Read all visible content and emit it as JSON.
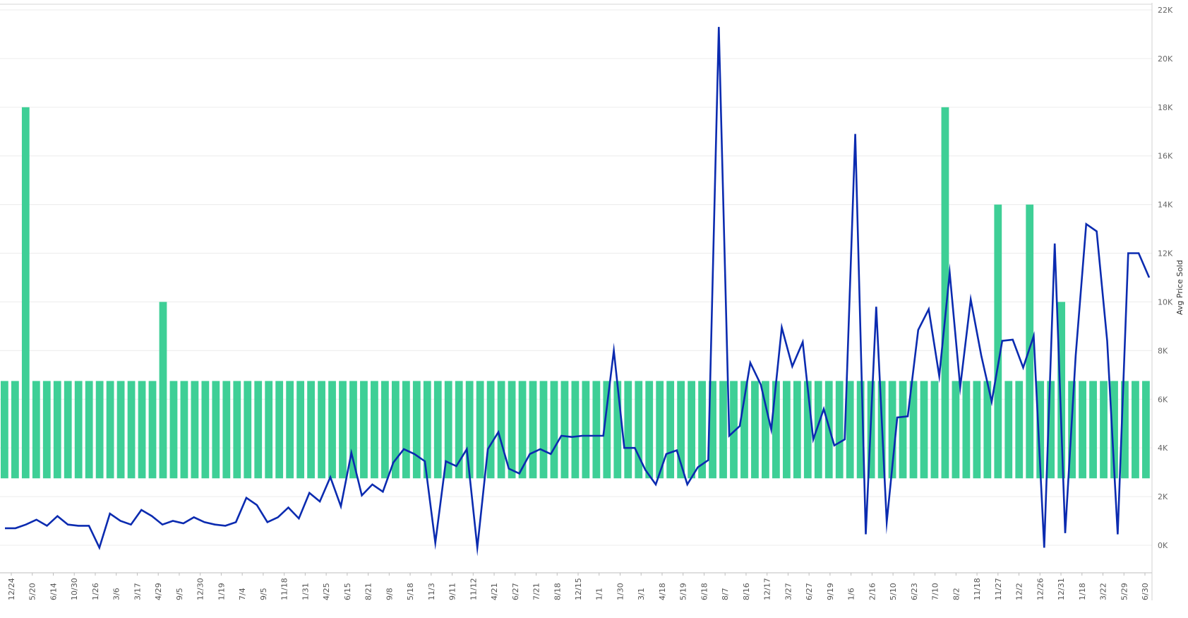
{
  "chart_data": {
    "type": "bar",
    "ylabel": "Avg Price Sold",
    "ylim": [
      -1100,
      22000
    ],
    "yticks": [
      0,
      2000,
      4000,
      6000,
      8000,
      10000,
      12000,
      14000,
      16000,
      18000,
      20000,
      22000
    ],
    "ytick_labels": [
      "0K",
      "2K",
      "4K",
      "6K",
      "8K",
      "10K",
      "12K",
      "14K",
      "16K",
      "18K",
      "20K",
      "22K"
    ],
    "grid": "horizontal",
    "bar_series": {
      "color": "#3ecf96",
      "bar_bottom": 2750,
      "default_top": 6750,
      "bar_count": 109,
      "bar_tops": {
        "2": 18000,
        "15": 10000,
        "89": 18000,
        "94": 14000,
        "97": 14000,
        "100": 10000
      }
    },
    "line_series": {
      "color": "#0b2bb0",
      "values": [
        700,
        700,
        850,
        1050,
        800,
        1200,
        850,
        800,
        800,
        -100,
        1300,
        1000,
        850,
        1450,
        1200,
        850,
        1000,
        900,
        1150,
        950,
        850,
        800,
        950,
        1950,
        1650,
        950,
        1150,
        1550,
        1100,
        2150,
        1800,
        2800,
        1600,
        3800,
        2050,
        2500,
        2200,
        3400,
        3950,
        3750,
        3450,
        100,
        3450,
        3250,
        3950,
        -100,
        3950,
        4650,
        3150,
        2950,
        3750,
        3950,
        3750,
        4500,
        4450,
        4500,
        4500,
        4500,
        8000,
        4000,
        4000,
        3100,
        2500,
        3750,
        3900,
        2500,
        3200,
        3500,
        21300,
        4500,
        4900,
        7500,
        6600,
        4750,
        8950,
        7350,
        8350,
        4350,
        5600,
        4100,
        4350,
        16900,
        450,
        9800,
        950,
        5250,
        5300,
        8850,
        9700,
        6950,
        11200,
        6500,
        10100,
        7800,
        5900,
        8400,
        8450,
        7300,
        8600,
        -100,
        12400,
        500,
        7800,
        13200,
        12900,
        8400,
        450,
        12000,
        12000,
        11000
      ]
    },
    "xtick_labels": [
      "12/24",
      "5/20",
      "6/14",
      "10/30",
      "1/26",
      "3/6",
      "3/17",
      "4/29",
      "9/5",
      "12/30",
      "1/19",
      "7/4",
      "9/5",
      "11/18",
      "1/31",
      "4/25",
      "6/15",
      "8/21",
      "9/8",
      "5/18",
      "11/3",
      "9/11",
      "11/12",
      "4/21",
      "6/27",
      "7/21",
      "8/18",
      "12/15",
      "1/1",
      "1/30",
      "3/1",
      "4/18",
      "5/19",
      "6/18",
      "8/7",
      "8/16",
      "12/17",
      "3/27",
      "6/27",
      "9/19",
      "1/6",
      "2/16",
      "5/10",
      "6/23",
      "7/10",
      "8/2",
      "11/18",
      "11/27",
      "12/2",
      "12/26",
      "12/31",
      "1/18",
      "3/22",
      "5/29",
      "6/30"
    ]
  }
}
